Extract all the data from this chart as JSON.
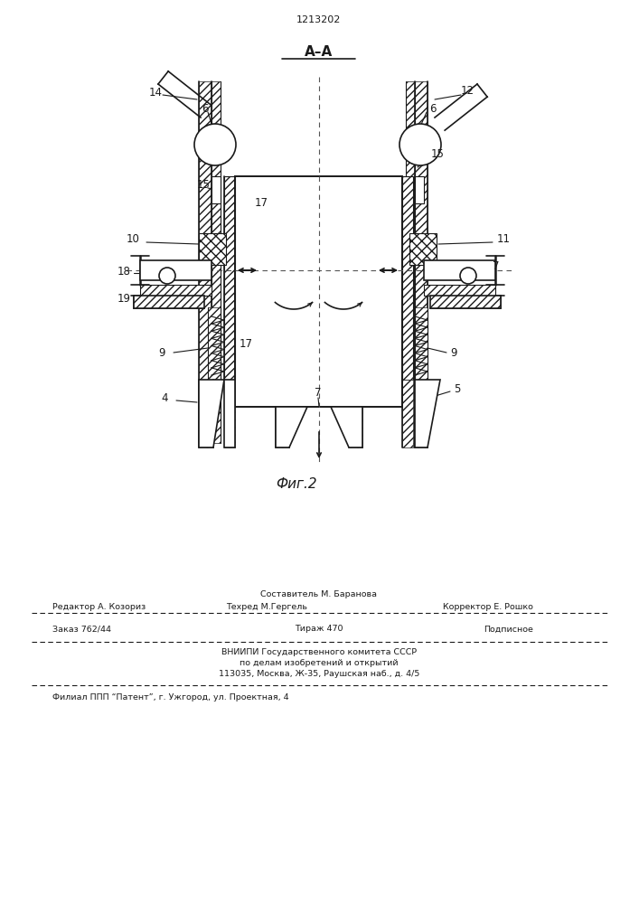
{
  "title_patent": "1213202",
  "section_label": "A–A",
  "fig_label": "Фиг.2",
  "background_color": "#ffffff",
  "line_color": "#1a1a1a",
  "footer_sostavitel": "Составитель М. Баранова",
  "footer_redaktor": "Редактор А. Козориз",
  "footer_tehred": "Техред М.Гергель",
  "footer_korrektor": "Корректор Е. Рошко",
  "footer_order": "Заказ 762/44",
  "footer_tirazh": "Тираж 470",
  "footer_podp": "Подписное",
  "footer_vniiipi": "ВНИИПИ Государственного комитета СССР",
  "footer_po_delam": "по делам изобретений и открытий",
  "footer_address": "113035, Москва, Ж-35, Раушская наб., д. 4/5",
  "footer_filial": "Филиал ППП “Патент”, г. Ужгород, ул. Проектная, 4"
}
